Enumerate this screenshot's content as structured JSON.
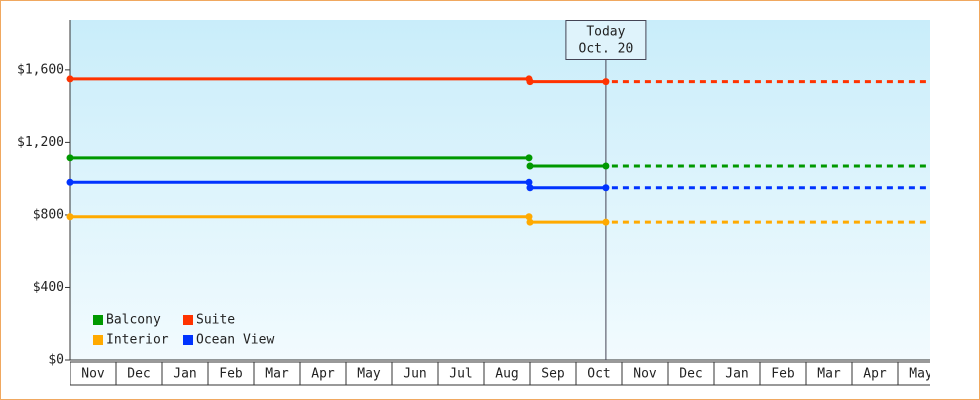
{
  "chart_data": {
    "type": "step-line",
    "categories": [
      "Nov",
      "Dec",
      "Jan",
      "Feb",
      "Mar",
      "Apr",
      "May",
      "Jun",
      "Jul",
      "Aug",
      "Sep",
      "Oct",
      "Nov",
      "Dec",
      "Jan",
      "Feb",
      "Mar",
      "Apr",
      "May"
    ],
    "series": [
      {
        "name": "Balcony",
        "color": "#009900",
        "values": [
          1115,
          1115,
          1115,
          1115,
          1115,
          1115,
          1115,
          1115,
          1115,
          1115,
          1070,
          1070,
          null,
          null,
          null,
          null,
          null,
          null,
          null
        ]
      },
      {
        "name": "Suite",
        "color": "#ff3300",
        "values": [
          1550,
          1550,
          1550,
          1550,
          1550,
          1550,
          1550,
          1550,
          1550,
          1550,
          1535,
          1535,
          null,
          null,
          null,
          null,
          null,
          null,
          null
        ]
      },
      {
        "name": "Interior",
        "color": "#ffaa00",
        "values": [
          790,
          790,
          790,
          790,
          790,
          790,
          790,
          790,
          790,
          790,
          760,
          760,
          null,
          null,
          null,
          null,
          null,
          null,
          null
        ]
      },
      {
        "name": "Ocean View",
        "color": "#0033ff",
        "values": [
          980,
          980,
          980,
          980,
          980,
          980,
          980,
          980,
          980,
          980,
          950,
          950,
          null,
          null,
          null,
          null,
          null,
          null,
          null
        ]
      }
    ],
    "today": {
      "label": "Today",
      "date": "Oct. 20",
      "x": 11.65
    },
    "ylim": [
      0,
      1875
    ],
    "yticks": [
      {
        "value": 0,
        "label": "$0"
      },
      {
        "value": 400,
        "label": "$400"
      },
      {
        "value": 800,
        "label": "$800"
      },
      {
        "value": 1200,
        "label": "$1,200"
      },
      {
        "value": 1600,
        "label": "$1,600"
      }
    ],
    "legend": "bottom-left"
  }
}
